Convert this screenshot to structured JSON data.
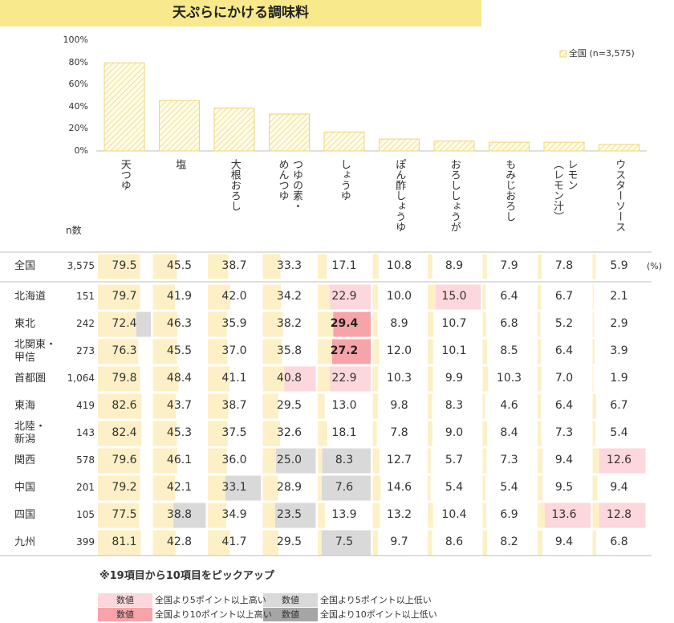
{
  "chart_data": {
    "type": "bar",
    "title": "天ぷらにかける調味料",
    "categories": [
      "天つゆ",
      "塩",
      "大根おろし",
      "つゆの素・\nめんつゆ",
      "しょうゆ",
      "ぽん酢しょうゆ",
      "おろししょうが",
      "もみじおろし",
      "レモン\n（レモン汁）",
      "ウスターソース"
    ],
    "series": [
      {
        "name": "全国 (n=3,575)",
        "color": "#ecd679",
        "values": [
          79.5,
          45.5,
          38.7,
          33.3,
          17.1,
          10.8,
          8.9,
          7.9,
          7.8,
          5.9
        ]
      }
    ],
    "ylim": [
      0,
      100
    ],
    "yticks": [
      {
        "value": 0,
        "label": "0%"
      },
      {
        "value": 20,
        "label": "20%"
      },
      {
        "value": 40,
        "label": "40%"
      },
      {
        "value": 60,
        "label": "60%"
      },
      {
        "value": 80,
        "label": "80%"
      },
      {
        "value": 100,
        "label": "100%"
      }
    ],
    "legend": "top-right"
  },
  "table": {
    "n_header": "n数",
    "unit": "(%)",
    "bar_color": "#fdf0c6",
    "rows": [
      {
        "name": "全国",
        "n": "3,575",
        "values": [
          79.5,
          45.5,
          38.7,
          33.3,
          17.1,
          10.8,
          8.9,
          7.9,
          7.8,
          5.9
        ],
        "value_labels": [
          "79.5",
          "45.5",
          "38.7",
          "33.3",
          "17.1",
          "10.8",
          "8.9",
          "7.9",
          "7.8",
          "5.9"
        ],
        "cell_colors": [
          null,
          null,
          null,
          null,
          null,
          null,
          null,
          null,
          null,
          null
        ]
      },
      {
        "name": "北海道",
        "n": "151",
        "values": [
          79.7,
          41.9,
          42.0,
          34.2,
          22.9,
          10.0,
          15.0,
          6.4,
          6.7,
          2.1
        ],
        "value_labels": [
          "79.7",
          "41.9",
          "42.0",
          "34.2",
          "22.9",
          "10.0",
          "15.0",
          "6.4",
          "6.7",
          "2.1"
        ],
        "cell_colors": [
          null,
          null,
          null,
          null,
          "#fcd7db",
          null,
          "#fcd7db",
          null,
          null,
          null
        ]
      },
      {
        "name": "東北",
        "n": "242",
        "values": [
          72.4,
          46.3,
          35.9,
          38.2,
          29.4,
          8.9,
          10.7,
          6.8,
          5.2,
          2.9
        ],
        "value_labels": [
          "72.4",
          "46.3",
          "35.9",
          "38.2",
          "29.4",
          "8.9",
          "10.7",
          "6.8",
          "5.2",
          "2.9"
        ],
        "cell_colors": [
          "#d9d9d9",
          null,
          null,
          null,
          "#f6a4aa",
          null,
          null,
          null,
          null,
          null
        ]
      },
      {
        "name": "北関東・\n甲信",
        "n": "273",
        "values": [
          76.3,
          45.5,
          37.0,
          35.8,
          27.2,
          12.0,
          10.1,
          8.5,
          6.4,
          3.9
        ],
        "value_labels": [
          "76.3",
          "45.5",
          "37.0",
          "35.8",
          "27.2",
          "12.0",
          "10.1",
          "8.5",
          "6.4",
          "3.9"
        ],
        "cell_colors": [
          null,
          null,
          null,
          null,
          "#f6a4aa",
          null,
          null,
          null,
          null,
          null
        ]
      },
      {
        "name": "首都圏",
        "n": "1,064",
        "values": [
          79.8,
          48.4,
          41.1,
          40.8,
          22.9,
          10.3,
          9.9,
          10.3,
          7.0,
          1.9
        ],
        "value_labels": [
          "79.8",
          "48.4",
          "41.1",
          "40.8",
          "22.9",
          "10.3",
          "9.9",
          "10.3",
          "7.0",
          "1.9"
        ],
        "cell_colors": [
          null,
          null,
          null,
          "#fcd7db",
          "#fcd7db",
          null,
          null,
          null,
          null,
          null
        ]
      },
      {
        "name": "東海",
        "n": "419",
        "values": [
          82.6,
          43.7,
          38.7,
          29.5,
          13.0,
          9.8,
          8.3,
          4.6,
          6.4,
          6.7
        ],
        "value_labels": [
          "82.6",
          "43.7",
          "38.7",
          "29.5",
          "13.0",
          "9.8",
          "8.3",
          "4.6",
          "6.4",
          "6.7"
        ],
        "cell_colors": [
          null,
          null,
          null,
          null,
          null,
          null,
          null,
          null,
          null,
          null
        ]
      },
      {
        "name": "北陸・\n新潟",
        "n": "143",
        "values": [
          82.4,
          45.3,
          37.5,
          32.6,
          18.1,
          7.8,
          9.0,
          8.4,
          7.3,
          5.4
        ],
        "value_labels": [
          "82.4",
          "45.3",
          "37.5",
          "32.6",
          "18.1",
          "7.8",
          "9.0",
          "8.4",
          "7.3",
          "5.4"
        ],
        "cell_colors": [
          null,
          null,
          null,
          null,
          null,
          null,
          null,
          null,
          null,
          null
        ]
      },
      {
        "name": "関西",
        "n": "578",
        "values": [
          79.6,
          46.1,
          36.0,
          25.0,
          8.3,
          12.7,
          5.7,
          7.3,
          9.4,
          12.6
        ],
        "value_labels": [
          "79.6",
          "46.1",
          "36.0",
          "25.0",
          "8.3",
          "12.7",
          "5.7",
          "7.3",
          "9.4",
          "12.6"
        ],
        "cell_colors": [
          null,
          null,
          null,
          "#d9d9d9",
          "#d9d9d9",
          null,
          null,
          null,
          null,
          "#fcd7db"
        ]
      },
      {
        "name": "中国",
        "n": "201",
        "values": [
          79.2,
          42.1,
          33.1,
          28.9,
          7.6,
          14.6,
          5.4,
          5.4,
          9.5,
          9.4
        ],
        "value_labels": [
          "79.2",
          "42.1",
          "33.1",
          "28.9",
          "7.6",
          "14.6",
          "5.4",
          "5.4",
          "9.5",
          "9.4"
        ],
        "cell_colors": [
          null,
          null,
          "#d9d9d9",
          null,
          "#d9d9d9",
          null,
          null,
          null,
          null,
          null
        ]
      },
      {
        "name": "四国",
        "n": "105",
        "values": [
          77.5,
          38.8,
          34.9,
          23.5,
          13.9,
          13.2,
          10.4,
          6.9,
          13.6,
          12.8
        ],
        "value_labels": [
          "77.5",
          "38.8",
          "34.9",
          "23.5",
          "13.9",
          "13.2",
          "10.4",
          "6.9",
          "13.6",
          "12.8"
        ],
        "cell_colors": [
          null,
          "#d9d9d9",
          null,
          "#d9d9d9",
          null,
          null,
          null,
          null,
          "#fcd7db",
          "#fcd7db"
        ]
      },
      {
        "name": "九州",
        "n": "399",
        "values": [
          81.1,
          42.8,
          41.7,
          29.5,
          7.5,
          9.7,
          8.6,
          8.2,
          9.4,
          6.8
        ],
        "value_labels": [
          "81.1",
          "42.8",
          "41.7",
          "29.5",
          "7.5",
          "9.7",
          "8.6",
          "8.2",
          "9.4",
          "6.8"
        ],
        "cell_colors": [
          null,
          null,
          null,
          null,
          "#d9d9d9",
          null,
          null,
          null,
          null,
          null
        ]
      }
    ],
    "note": "※19項目から10項目をピックアップ",
    "legend": [
      {
        "label": "数値",
        "text": "全国より5ポイント以上高い",
        "color": "#fcd7db",
        "bold": false
      },
      {
        "label": "数値",
        "text": "全国より10ポイント以上高い",
        "color": "#f6a4aa",
        "bold": true
      },
      {
        "label": "数値",
        "text": "全国より5ポイント以上低い",
        "color": "#d9d9d9",
        "bold": false
      },
      {
        "label": "数値",
        "text": "全国より10ポイント以上低い",
        "color": "#a6a6a6",
        "bold": false
      }
    ]
  }
}
